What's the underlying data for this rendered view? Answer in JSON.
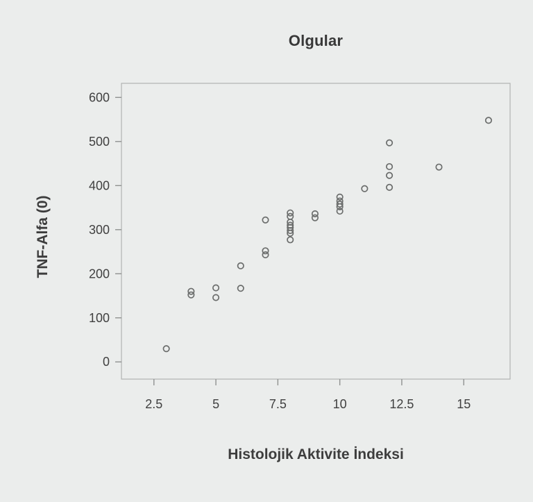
{
  "chart_data": {
    "type": "scatter",
    "title": "Olgular",
    "xlabel": "Histolojik Aktivite İndeksi",
    "ylabel": "TNF-Alfa (0)",
    "xlim": [
      1.19,
      16.87
    ],
    "ylim": [
      -39,
      632
    ],
    "grid": false,
    "legend": "none",
    "marker": "open-circle",
    "x_ticks": [
      {
        "value": 2.5,
        "label": "2.5"
      },
      {
        "value": 5,
        "label": "5"
      },
      {
        "value": 7.5,
        "label": "7.5"
      },
      {
        "value": 10,
        "label": "10"
      },
      {
        "value": 12.5,
        "label": "12.5"
      },
      {
        "value": 15,
        "label": "15"
      }
    ],
    "y_ticks": [
      {
        "value": 0,
        "label": "0"
      },
      {
        "value": 100,
        "label": "100"
      },
      {
        "value": 200,
        "label": "200"
      },
      {
        "value": 300,
        "label": "300"
      },
      {
        "value": 400,
        "label": "400"
      },
      {
        "value": 500,
        "label": "500"
      },
      {
        "value": 600,
        "label": "600"
      }
    ],
    "points": [
      {
        "x": 3,
        "y": 30
      },
      {
        "x": 4,
        "y": 160
      },
      {
        "x": 4,
        "y": 152
      },
      {
        "x": 5,
        "y": 168
      },
      {
        "x": 5,
        "y": 146
      },
      {
        "x": 6,
        "y": 218
      },
      {
        "x": 6,
        "y": 167
      },
      {
        "x": 7,
        "y": 322
      },
      {
        "x": 7,
        "y": 252
      },
      {
        "x": 7,
        "y": 243
      },
      {
        "x": 8,
        "y": 338
      },
      {
        "x": 8,
        "y": 330
      },
      {
        "x": 8,
        "y": 317
      },
      {
        "x": 8,
        "y": 310
      },
      {
        "x": 8,
        "y": 305
      },
      {
        "x": 8,
        "y": 298
      },
      {
        "x": 8,
        "y": 292
      },
      {
        "x": 8,
        "y": 277
      },
      {
        "x": 9,
        "y": 336
      },
      {
        "x": 9,
        "y": 327
      },
      {
        "x": 10,
        "y": 374
      },
      {
        "x": 10,
        "y": 365
      },
      {
        "x": 10,
        "y": 358
      },
      {
        "x": 10,
        "y": 352
      },
      {
        "x": 10,
        "y": 342
      },
      {
        "x": 11,
        "y": 393
      },
      {
        "x": 12,
        "y": 497
      },
      {
        "x": 12,
        "y": 443
      },
      {
        "x": 12,
        "y": 423
      },
      {
        "x": 12,
        "y": 396
      },
      {
        "x": 14,
        "y": 442
      },
      {
        "x": 16,
        "y": 548
      }
    ]
  },
  "colors": {
    "background": "#ebedec",
    "plot_border": "#b1b3b2",
    "tick_mark": "#8f9190",
    "tick_text": "#404040",
    "marker_stroke": "#6b6d6c",
    "title_text": "#383838"
  }
}
